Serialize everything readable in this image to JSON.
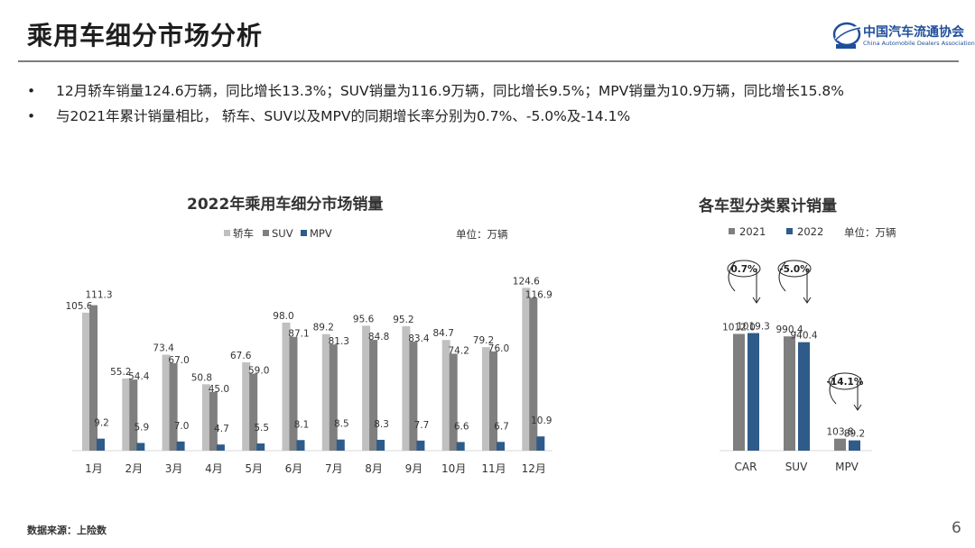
{
  "header": {
    "title": "乘用车细分市场分析",
    "logo_name": "中国汽车流通协会",
    "logo_sub": "China Automobile Dealers Association"
  },
  "bullets": [
    "12月轿车销量124.6万辆，同比增长13.3%；SUV销量为116.9万辆，同比增长9.5%；MPV销量为10.9万辆，同比增长15.8%",
    "与2021年累计销量相比， 轿车、SUV以及MPV的同期增长率分别为0.7%、-5.0%及-14.1%"
  ],
  "bullet_marker": "•",
  "footer": {
    "source": "数据来源：上险数",
    "page": "6"
  },
  "colors": {
    "car": "#c0c0c0",
    "suv": "#7f7f7f",
    "mpv": "#2e5b8a",
    "y2021": "#7f7f7f",
    "y2022": "#2e5b8a",
    "axis": "#d9d9d9"
  },
  "chart_data": [
    {
      "type": "bar",
      "title": "2022年乘用车细分市场销量",
      "unit": "单位：万辆",
      "categories": [
        "1月",
        "2月",
        "3月",
        "4月",
        "5月",
        "6月",
        "7月",
        "8月",
        "9月",
        "10月",
        "11月",
        "12月"
      ],
      "series": [
        {
          "name": "轿车",
          "values": [
            105.6,
            55.2,
            73.4,
            50.8,
            67.6,
            98.0,
            89.2,
            95.6,
            95.2,
            84.7,
            79.2,
            124.6
          ]
        },
        {
          "name": "SUV",
          "values": [
            111.3,
            54.4,
            67.0,
            45.0,
            59.0,
            87.1,
            81.3,
            84.8,
            83.4,
            74.2,
            76.0,
            116.9
          ]
        },
        {
          "name": "MPV",
          "values": [
            9.2,
            5.9,
            7.0,
            4.7,
            5.5,
            8.1,
            8.5,
            8.3,
            7.7,
            6.6,
            6.7,
            10.9
          ]
        }
      ],
      "legend_position": "top",
      "grid": false
    },
    {
      "type": "bar",
      "title": "各车型分类累计销量",
      "unit": "单位：万辆",
      "categories": [
        "CAR",
        "SUV",
        "MPV"
      ],
      "series": [
        {
          "name": "2021",
          "values": [
            1012.0,
            990.4,
            103.8
          ]
        },
        {
          "name": "2022",
          "values": [
            1019.3,
            940.4,
            89.2
          ]
        }
      ],
      "annotations": [
        "0.7%",
        "-5.0%",
        "-14.1%"
      ],
      "legend_position": "top",
      "grid": false
    }
  ]
}
